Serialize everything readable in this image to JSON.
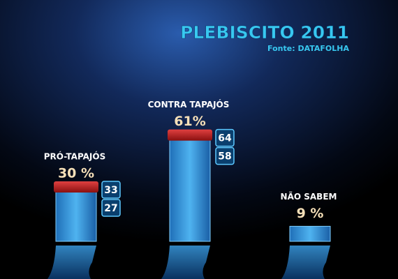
{
  "chart_data": {
    "type": "bar",
    "title": "PLEBISCITO 2011",
    "subtitle": "Fonte: DATAFOLHA",
    "categories": [
      "PRÓ-TAPAJÓS",
      "CONTRA TAPAJÓS",
      "NÃO SABEM"
    ],
    "values": [
      30,
      61,
      9
    ],
    "value_labels": [
      "30 %",
      "61%",
      "9 %"
    ],
    "upper": [
      33,
      64,
      null
    ],
    "lower": [
      27,
      58,
      null
    ],
    "color": "#2a8fd8"
  }
}
